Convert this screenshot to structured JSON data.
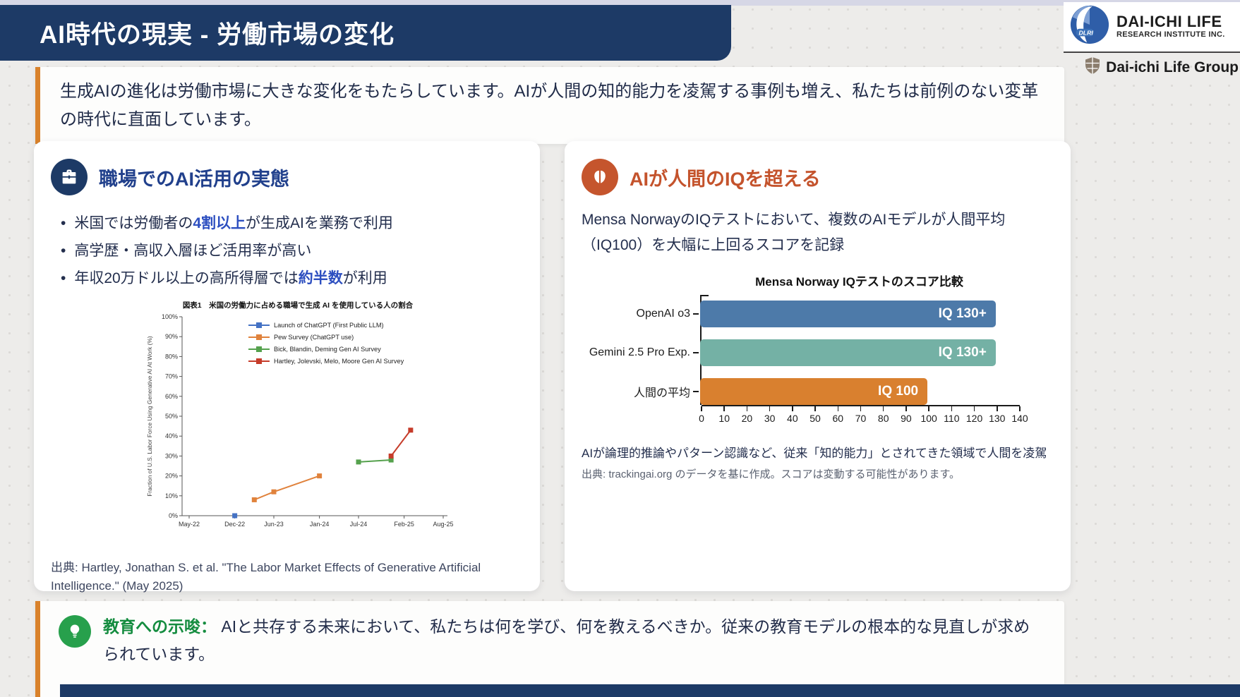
{
  "header": {
    "title": "AI時代の現実 - 労働市場の変化"
  },
  "logo": {
    "acronym": "DLRI",
    "line1": "DAI-ICHI LIFE",
    "line2": "RESEARCH INSTITUTE INC.",
    "group": "Dai-ichi Life Group"
  },
  "intro": {
    "text": "生成AIの進化は労働市場に大きな変化をもたらしています。AIが人間の知的能力を凌駕する事例も増え、私たちは前例のない変革の時代に直面しています。"
  },
  "left_card": {
    "title": "職場でのAI活用の実態",
    "bullets": [
      {
        "pre": "米国では労働者の",
        "highlight": "4割以上",
        "post": "が生成AIを業務で利用"
      },
      {
        "pre": "高学歴・高収入層ほど活用率が高い",
        "highlight": "",
        "post": ""
      },
      {
        "pre": "年収20万ドル以上の高所得層では",
        "highlight": "約半数",
        "post": "が利用"
      }
    ],
    "citation": "出典: Hartley, Jonathan S. et al. \"The Labor Market Effects of Generative Artificial Intelligence.\" (May 2025)"
  },
  "right_card": {
    "title": "AIが人間のIQを超える",
    "description": "Mensa NorwayのIQテストにおいて、複数のAIモデルが人間平均（IQ100）を大幅に上回るスコアを記録",
    "note": "AIが論理的推論やパターン認識など、従来「知的能力」とされてきた領域で人間を凌駕",
    "source": "出典: trackingai.org のデータを基に作成。スコアは変動する可能性があります。"
  },
  "footer_card": {
    "title": "教育への示唆：",
    "text": " AIと共存する未来において、私たちは何を学び、何を教えるべきか。従来の教育モデルの根本的な見直しが求められています。"
  },
  "colors": {
    "header_navy": "#1d3a66",
    "accent_orange_border": "#d9822b",
    "left_title_blue": "#21408c",
    "right_title_orange": "#c4532c",
    "footer_green": "#148c3f",
    "highlight_blue": "#2d4fc0"
  },
  "chart_data": [
    {
      "type": "line",
      "title": "図表1　米国の労働力に占める職場で生成 AI を使用している人の割合",
      "ylabel": "Fraction of U.S. Labor Force Using Generative AI At Work (%)",
      "x_unit": "months since May-2022",
      "x_ticks": [
        {
          "label": "May-22",
          "month": 0
        },
        {
          "label": "Dec-22",
          "month": 7
        },
        {
          "label": "Jun-23",
          "month": 13
        },
        {
          "label": "Jan-24",
          "month": 20
        },
        {
          "label": "Jul-24",
          "month": 26
        },
        {
          "label": "Feb-25",
          "month": 33
        },
        {
          "label": "Aug-25",
          "month": 39
        }
      ],
      "ylim": [
        0,
        100
      ],
      "y_tick_step": 10,
      "y_tick_suffix": "%",
      "grid": false,
      "legend_position": "top-center-inside",
      "series": [
        {
          "name": "Launch of ChatGPT (First Public LLM)",
          "color": "#4472c4",
          "points": [
            [
              7,
              0
            ]
          ]
        },
        {
          "name": "Pew Survey (ChatGPT use)",
          "color": "#e0823c",
          "points": [
            [
              10,
              8
            ],
            [
              13,
              12
            ],
            [
              20,
              20
            ]
          ]
        },
        {
          "name": "Bick, Blandin, Deming Gen AI Survey",
          "color": "#55a14d",
          "points": [
            [
              26,
              27
            ],
            [
              31,
              28
            ]
          ]
        },
        {
          "name": "Hartley, Jolevski, Melo, Moore Gen AI Survey",
          "color": "#c63c2a",
          "points": [
            [
              31,
              30
            ],
            [
              34,
              43
            ]
          ]
        }
      ]
    },
    {
      "type": "bar",
      "orientation": "horizontal",
      "title": "Mensa Norway IQテストのスコア比較",
      "categories": [
        "OpenAI o3",
        "Gemini 2.5 Pro Exp.",
        "人間の平均"
      ],
      "values": [
        130,
        130,
        100
      ],
      "bar_labels": [
        "IQ 130+",
        "IQ 130+",
        "IQ 100"
      ],
      "bar_colors": [
        "#4d7aa9",
        "#74b1a5",
        "#d9802f"
      ],
      "xlim": [
        0,
        140
      ],
      "x_tick_step": 10,
      "grid": false
    }
  ]
}
